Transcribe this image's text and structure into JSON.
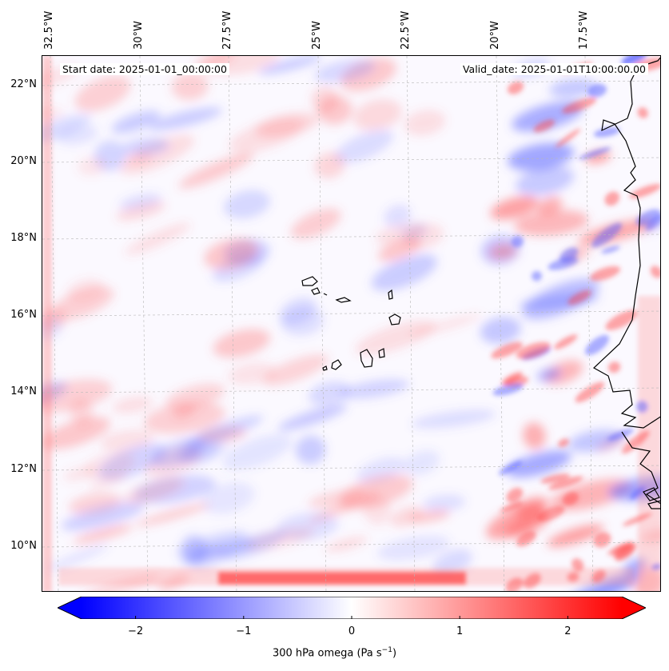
{
  "map": {
    "lon_labels": [
      "32.5°W",
      "30°W",
      "27.5°W",
      "25°W",
      "22.5°W",
      "20°W",
      "17.5°W"
    ],
    "lat_labels": [
      "22°N",
      "20°N",
      "18°N",
      "16°N",
      "14°N",
      "12°N",
      "10°N"
    ],
    "start_date": "Start date: 2025-01-01_00:00:00",
    "valid_date": "Valid_date: 2025-01-01T10:00:00.00",
    "gridlines": true,
    "field_variable": "300 hPa omega",
    "coastline_color": "#000000"
  },
  "colorbar": {
    "ticks": [
      "−2",
      "−1",
      "0",
      "1",
      "2"
    ],
    "tick_values": [
      -2,
      -1,
      0,
      1,
      2
    ],
    "range": [
      -2.5,
      2.5
    ],
    "label": "300 hPa omega (Pa s",
    "label_sup": "−1",
    "label_end": ")",
    "cmap": [
      "#0000ff",
      "#ffffff",
      "#ff0000"
    ],
    "extend": "both"
  }
}
